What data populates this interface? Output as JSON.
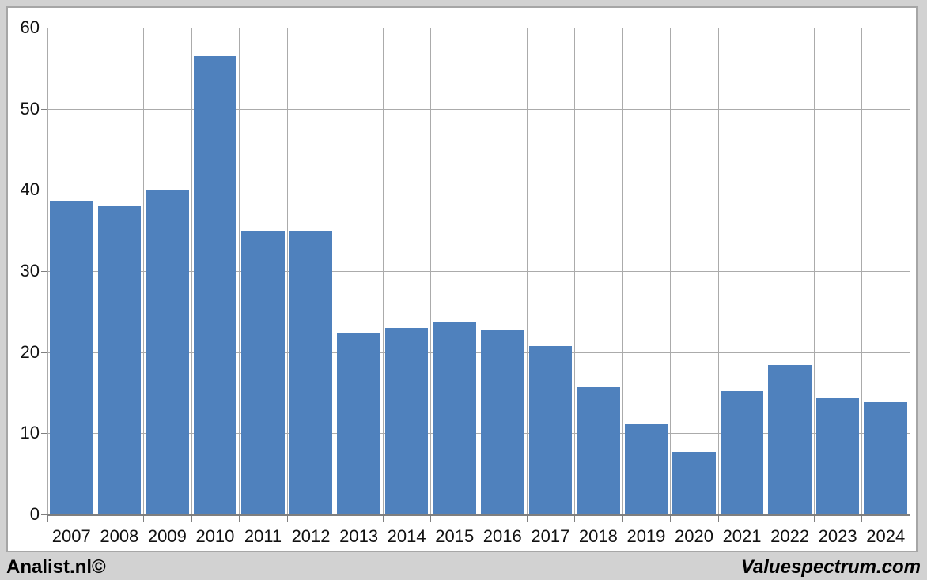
{
  "chart_data": {
    "type": "bar",
    "title": "",
    "xlabel": "",
    "ylabel": "",
    "categories": [
      "2007",
      "2008",
      "2009",
      "2010",
      "2011",
      "2012",
      "2013",
      "2014",
      "2015",
      "2016",
      "2017",
      "2018",
      "2019",
      "2020",
      "2021",
      "2022",
      "2023",
      "2024"
    ],
    "values": [
      38.6,
      38.0,
      40.0,
      56.5,
      35.0,
      35.0,
      22.4,
      23.0,
      23.7,
      22.7,
      20.7,
      15.7,
      11.1,
      7.7,
      15.2,
      18.4,
      14.3,
      13.8
    ],
    "ylim": [
      0,
      60
    ],
    "yticks": [
      0,
      10,
      20,
      30,
      40,
      50,
      60
    ],
    "grid": true,
    "legend": "none",
    "bar_color": "#4f81bd",
    "gridline_color": "#ababab",
    "axis_color": "#7f7f7f"
  },
  "footer": {
    "left": "Analist.nl©",
    "right": "Valuespectrum.com"
  }
}
